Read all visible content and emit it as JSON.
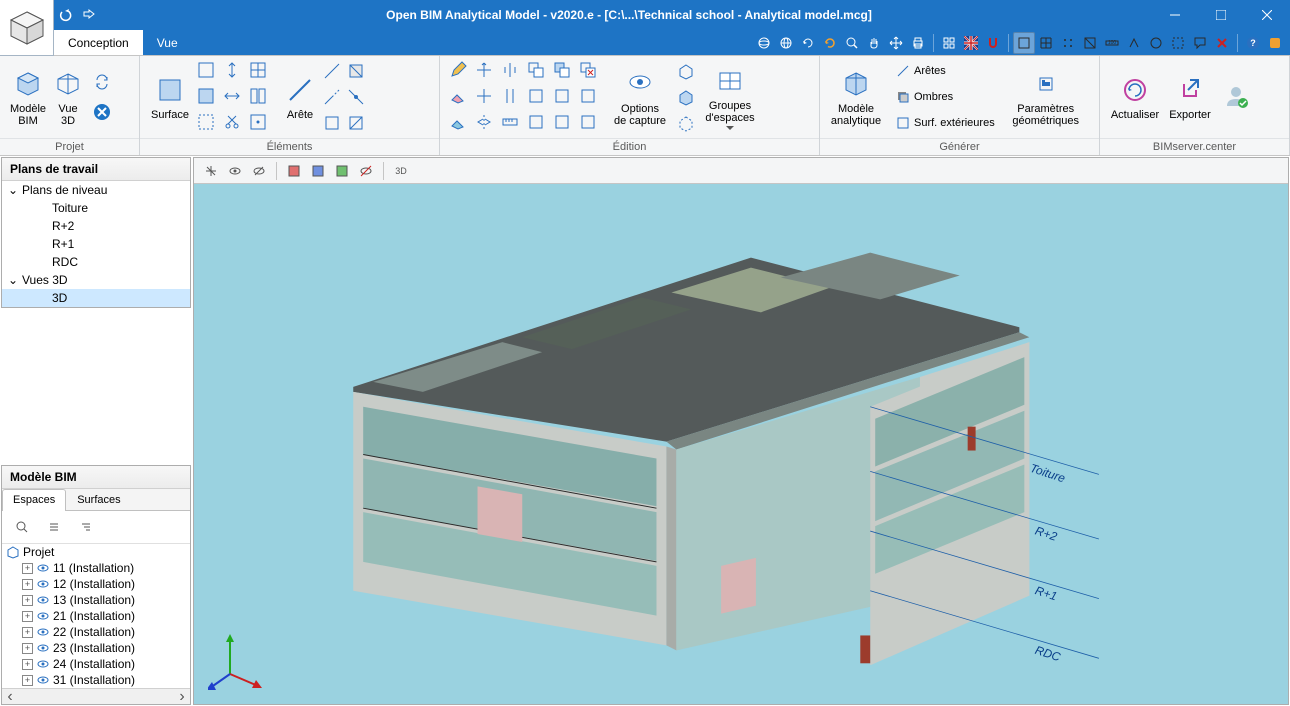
{
  "app": {
    "title": "Open BIM Analytical Model - v2020.e - [C:\\...\\Technical school - Analytical model.mcg]",
    "accent_color": "#1e74c5",
    "viewport_bg": "#9ad2e0"
  },
  "tabs": {
    "conception": "Conception",
    "vue": "Vue"
  },
  "ribbon": {
    "projet": {
      "label": "Projet",
      "modele_bim": "Modèle\nBIM",
      "vue_3d": "Vue\n3D"
    },
    "elements": {
      "label": "Éléments",
      "surface": "Surface",
      "arete": "Arête"
    },
    "edition": {
      "label": "Édition",
      "options_capture": "Options\nde capture",
      "groupes_espaces": "Groupes\nd'espaces"
    },
    "generer": {
      "label": "Générer",
      "modele_analytique": "Modèle\nanalytique",
      "aretes": "Arêtes",
      "ombres": "Ombres",
      "surf_ext": "Surf. extérieures",
      "parametres_geom": "Paramètres\ngéométriques"
    },
    "bimserver": {
      "label": "BIMserver.center",
      "actualiser": "Actualiser",
      "exporter": "Exporter"
    }
  },
  "left_panel": {
    "plans_travail": {
      "title": "Plans de travail",
      "plans_niveau": "Plans de niveau",
      "levels": [
        "Toiture",
        "R+2",
        "R+1",
        "RDC"
      ],
      "vues_3d": "Vues 3D",
      "vue_3d_item": "3D"
    },
    "modele_bim": {
      "title": "Modèle BIM",
      "tab_espaces": "Espaces",
      "tab_surfaces": "Surfaces",
      "projet": "Projet",
      "installations": [
        "11 (Installation)",
        "12 (Installation)",
        "13 (Installation)",
        "21 (Installation)",
        "22 (Installation)",
        "23 (Installation)",
        "24 (Installation)",
        "31 (Installation)"
      ]
    }
  },
  "viewport": {
    "level_labels": [
      "Toiture",
      "R+2",
      "R+1",
      "RDC"
    ],
    "building_colors": {
      "wall": "#c8ccc8",
      "glass": "#8ab8b6",
      "roof_dark": "#545a5a",
      "roof_mid": "#7a8682",
      "roof_green": "#95a28a",
      "door": "#9c3c2c",
      "pink": "#d9b4b4"
    },
    "axis_colors": {
      "x": "#cc2020",
      "y": "#20aa20",
      "z": "#2040cc"
    }
  }
}
